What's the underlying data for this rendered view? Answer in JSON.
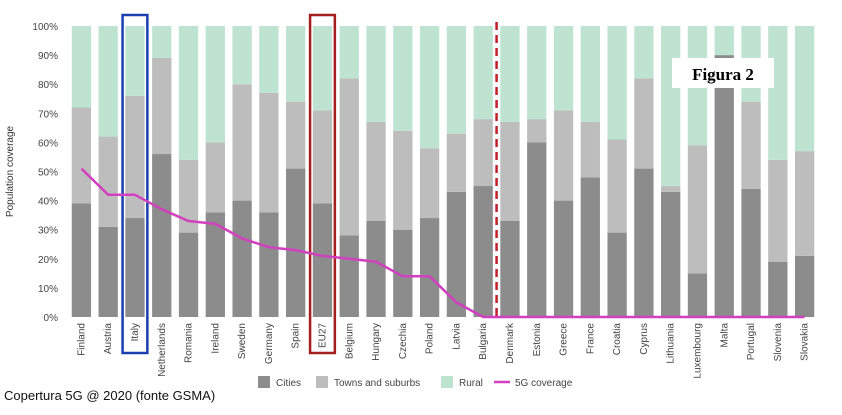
{
  "chart_data": {
    "type": "bar",
    "stacked": true,
    "ylabel": "Population coverage",
    "yticks": [
      "0%",
      "10%",
      "20%",
      "30%",
      "40%",
      "50%",
      "60%",
      "70%",
      "80%",
      "90%",
      "100%"
    ],
    "ylim": [
      0,
      100
    ],
    "categories": [
      "Finland",
      "Austria",
      "Italy",
      "Netherlands",
      "Romania",
      "Ireland",
      "Sweden",
      "Germany",
      "Spain",
      "EU27",
      "Belgium",
      "Hungary",
      "Czechia",
      "Poland",
      "Latvia",
      "Bulgaria",
      "Denmark",
      "Estonia",
      "Greece",
      "France",
      "Croatia",
      "Cyprus",
      "Lithuania",
      "Luxembourg",
      "Malta",
      "Portugal",
      "Slovenia",
      "Slovakia"
    ],
    "series": [
      {
        "name": "Cities",
        "color": "#8c8c8c",
        "values": [
          39,
          31,
          34,
          56,
          29,
          36,
          40,
          36,
          51,
          39,
          28,
          33,
          30,
          34,
          43,
          45,
          33,
          60,
          40,
          48,
          29,
          51,
          43,
          15,
          90,
          44,
          19,
          21
        ]
      },
      {
        "name": "Towns and suburbs",
        "color": "#bdbdbd",
        "values": [
          33,
          31,
          42,
          33,
          25,
          24,
          40,
          41,
          23,
          32,
          54,
          34,
          34,
          24,
          20,
          23,
          34,
          8,
          31,
          19,
          32,
          31,
          2,
          44,
          0,
          30,
          35,
          36
        ]
      },
      {
        "name": "Rural",
        "color": "#bfe3d1",
        "values": [
          28,
          38,
          24,
          11,
          46,
          40,
          20,
          23,
          26,
          29,
          18,
          33,
          36,
          42,
          37,
          32,
          33,
          32,
          29,
          33,
          39,
          18,
          55,
          41,
          10,
          26,
          46,
          43
        ]
      }
    ],
    "line_series": {
      "name": "5G coverage",
      "color": "#d23fbf",
      "values": [
        51,
        42,
        42,
        37,
        33,
        32,
        27,
        24,
        23,
        21,
        20,
        19,
        14,
        14,
        5,
        0,
        0,
        0,
        0,
        0,
        0,
        0,
        0,
        0,
        0,
        0,
        0,
        0
      ]
    },
    "highlights": [
      {
        "category": "Italy",
        "color": "#1a3fb0"
      },
      {
        "category": "EU27",
        "color": "#a51d1d"
      }
    ],
    "divider_after": "Bulgaria",
    "divider_color": "#c0202a",
    "legend": [
      "Cities",
      "Towns and suburbs",
      "Rural",
      "5G coverage"
    ],
    "legend_position": "bottom",
    "annotation": "Figura 2"
  },
  "caption": "Copertura 5G @ 2020 (fonte GSMA)"
}
